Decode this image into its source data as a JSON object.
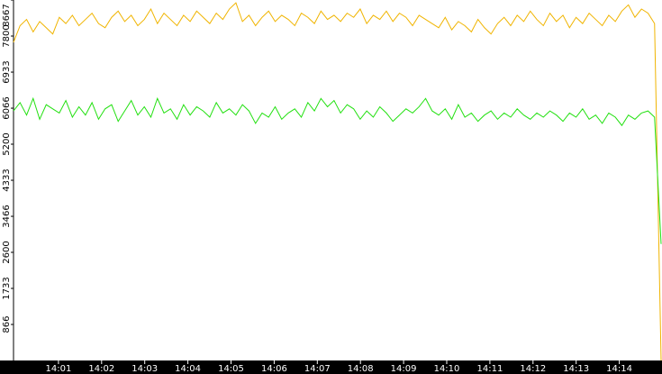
{
  "chart_data": {
    "type": "line",
    "ylim": [
      0,
      8667
    ],
    "yticks": [
      866,
      1733,
      2600,
      3466,
      4333,
      5200,
      6066,
      6933,
      7800,
      8667
    ],
    "x_tick_labels": [
      "14:01",
      "14:02",
      "14:03",
      "14:04",
      "14:05",
      "14:06",
      "14:07",
      "14:08",
      "14:09",
      "14:10",
      "14:11",
      "14:12",
      "14:13",
      "14:14"
    ],
    "series": [
      {
        "color": "#f0b400",
        "values": [
          7650,
          8050,
          8200,
          7900,
          8150,
          8000,
          7850,
          8250,
          8100,
          8300,
          8050,
          8200,
          8350,
          8100,
          8000,
          8250,
          8400,
          8150,
          8300,
          8050,
          8200,
          8450,
          8100,
          8350,
          8200,
          8050,
          8300,
          8150,
          8400,
          8250,
          8100,
          8350,
          8200,
          8450,
          8600,
          8150,
          8300,
          8050,
          8250,
          8400,
          8150,
          8300,
          8200,
          8050,
          8350,
          8250,
          8100,
          8400,
          8200,
          8300,
          8150,
          8350,
          8250,
          8450,
          8100,
          8300,
          8200,
          8400,
          8150,
          8350,
          8250,
          8050,
          8300,
          8200,
          8100,
          8000,
          8250,
          7950,
          8150,
          8050,
          7900,
          8200,
          8000,
          7850,
          8100,
          8250,
          8050,
          8300,
          8150,
          8400,
          8200,
          8050,
          8350,
          8150,
          8300,
          8000,
          8250,
          8100,
          8350,
          8200,
          8050,
          8300,
          8150,
          8400,
          8550,
          8250,
          8450,
          8350,
          8100,
          0
        ]
      },
      {
        "color": "#22e010",
        "values": [
          6000,
          6200,
          5900,
          6300,
          5800,
          6150,
          6050,
          5950,
          6250,
          5850,
          6100,
          5900,
          6200,
          5800,
          6050,
          6150,
          5750,
          6000,
          6250,
          5900,
          6100,
          5850,
          6300,
          5950,
          6050,
          5800,
          6150,
          5900,
          6100,
          6000,
          5850,
          6200,
          5950,
          6050,
          5900,
          6150,
          6000,
          5700,
          5950,
          5850,
          6100,
          5800,
          5950,
          6050,
          5850,
          6200,
          6000,
          6300,
          6100,
          6250,
          5950,
          6150,
          6050,
          5800,
          6000,
          5850,
          6100,
          5950,
          5750,
          5900,
          6050,
          5950,
          6100,
          6300,
          6000,
          5900,
          6050,
          5800,
          6150,
          5850,
          5950,
          5750,
          5900,
          6000,
          5800,
          5950,
          5850,
          6050,
          5900,
          5800,
          5950,
          5850,
          6000,
          5900,
          5750,
          5950,
          5850,
          6050,
          5800,
          5900,
          5700,
          5950,
          5850,
          5650,
          5900,
          5800,
          5950,
          6000,
          5850,
          2800
        ]
      }
    ]
  }
}
